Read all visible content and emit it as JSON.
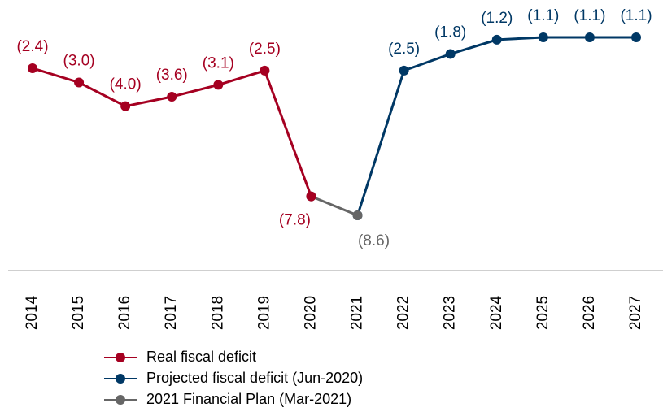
{
  "chart_data": {
    "type": "line",
    "categories": [
      "2014",
      "2015",
      "2016",
      "2017",
      "2018",
      "2019",
      "2020",
      "2021",
      "2022",
      "2023",
      "2024",
      "2025",
      "2026",
      "2027"
    ],
    "series": [
      {
        "name": "Real fiscal deficit",
        "color": "#a50021",
        "values": [
          -2.4,
          -3.0,
          -4.0,
          -3.6,
          -3.1,
          -2.5,
          -7.8,
          null,
          null,
          null,
          null,
          null,
          null,
          null
        ],
        "value_labels": [
          "(2.4)",
          "(3.0)",
          "(4.0)",
          "(3.6)",
          "(3.1)",
          "(2.5)",
          "(7.8)",
          null,
          null,
          null,
          null,
          null,
          null,
          null
        ]
      },
      {
        "name": "Projected fiscal deficit (Jun-2020)",
        "color": "#003865",
        "values": [
          null,
          null,
          null,
          null,
          null,
          null,
          null,
          -8.6,
          -2.5,
          -1.8,
          -1.2,
          -1.1,
          -1.1,
          -1.1
        ],
        "value_labels": [
          null,
          null,
          null,
          null,
          null,
          null,
          null,
          null,
          "(2.5)",
          "(1.8)",
          "(1.2)",
          "(1.1)",
          "(1.1)",
          "(1.1)"
        ]
      },
      {
        "name": "2021 Financial Plan (Mar-2021)",
        "color": "#666666",
        "values": [
          null,
          null,
          null,
          null,
          null,
          null,
          -7.8,
          -8.6,
          null,
          null,
          null,
          null,
          null,
          null
        ],
        "value_labels": [
          null,
          null,
          null,
          null,
          null,
          null,
          null,
          "(8.6)",
          null,
          null,
          null,
          null,
          null,
          null
        ]
      }
    ]
  }
}
